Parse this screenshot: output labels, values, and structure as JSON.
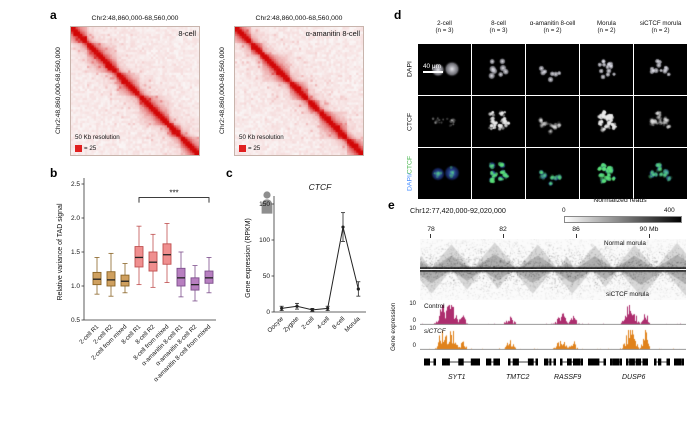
{
  "figure": {
    "panel_a": {
      "label": "a",
      "legend_color": "#e01f1f",
      "maps": [
        {
          "title": "Chr2:48,860,000-68,560,000",
          "y_label": "Chr2:48,860,000-68,560,000",
          "sample": "8-cell",
          "resolution": "50 Kb resolution",
          "scale_value": "= 25"
        },
        {
          "title": "Chr2:48,860,000-68,560,000",
          "y_label": "Chr2:48,860,000-68,560,000",
          "sample": "α-amanitin 8-cell",
          "resolution": "50 Kb resolution",
          "scale_value": "= 25"
        }
      ]
    },
    "panel_b": {
      "label": "b"
    },
    "panel_c": {
      "label": "c"
    },
    "panel_d": {
      "label": "d",
      "columns": [
        {
          "name": "2-cell",
          "n": "(n = 3)"
        },
        {
          "name": "8-cell",
          "n": "(n = 3)"
        },
        {
          "name": "α-amanitin 8-cell",
          "n": "(n = 2)"
        },
        {
          "name": "Morula",
          "n": "(n = 2)"
        },
        {
          "name": "siCTCF morula",
          "n": "(n = 2)"
        }
      ],
      "row_labels": {
        "row1": "DAPI",
        "row2": "CTCF",
        "row3_part1": "DAPI/",
        "row3_part2": "CTCF"
      },
      "stain_colors": {
        "dapi": "#4a90ff",
        "ctcf": "#44b54a"
      },
      "scale_bar": "40 μm"
    },
    "panel_e": {
      "label": "e",
      "title": "Chr12:77,420,000-92,020,000",
      "colorbar": {
        "title": "Normalized reads",
        "min": "0",
        "max": "400"
      },
      "axis_ticks": [
        "78",
        "82",
        "86",
        "90 Mb"
      ],
      "track1_label": "Normal morula",
      "track2_label": "siCTCF morula",
      "expression_axis_label": "Gene expression",
      "expr_tracks": [
        {
          "name": "Control",
          "max": "10",
          "min": "0",
          "color": "#ad2d6e"
        },
        {
          "name": "siCTCF",
          "max": "10",
          "min": "0",
          "color": "#e0821b"
        }
      ],
      "genes": [
        "SYT1",
        "TMTC2",
        "RASSF9",
        "DUSP6"
      ]
    }
  },
  "chart_data": [
    {
      "type": "box",
      "title": "Relative variance of TAD signal",
      "xlabel": "",
      "ylabel": "Relative variance of TAD signal",
      "ylim": [
        0.5,
        2.5
      ],
      "yticks": [
        0.5,
        1.0,
        1.5,
        2.0,
        2.5
      ],
      "grid": false,
      "legend_position": "none",
      "categories": [
        "2-cell R1",
        "2-cell R2",
        "2-cell from mixed",
        "8-cell R1",
        "8-cell R2",
        "8-cell from mixed",
        "α-amanitin 8-cell R1",
        "α-amanitin 8-cell R2",
        "α-amanitin 8-cell from mixed"
      ],
      "series": [
        {
          "category": "2-cell R1",
          "group": "2-cell",
          "whislo": 0.88,
          "q1": 1.02,
          "med": 1.1,
          "q3": 1.2,
          "whishi": 1.42
        },
        {
          "category": "2-cell R2",
          "group": "2-cell",
          "whislo": 0.85,
          "q1": 1.0,
          "med": 1.09,
          "q3": 1.21,
          "whishi": 1.48
        },
        {
          "category": "2-cell from mixed",
          "group": "2-cell",
          "whislo": 0.9,
          "q1": 1.0,
          "med": 1.07,
          "q3": 1.16,
          "whishi": 1.33
        },
        {
          "category": "8-cell R1",
          "group": "8-cell",
          "whislo": 1.02,
          "q1": 1.28,
          "med": 1.42,
          "q3": 1.58,
          "whishi": 1.88
        },
        {
          "category": "8-cell R2",
          "group": "8-cell",
          "whislo": 0.98,
          "q1": 1.22,
          "med": 1.35,
          "q3": 1.5,
          "whishi": 1.76
        },
        {
          "category": "8-cell from mixed",
          "group": "8-cell",
          "whislo": 1.05,
          "q1": 1.32,
          "med": 1.46,
          "q3": 1.62,
          "whishi": 1.92
        },
        {
          "category": "α-amanitin 8-cell R1",
          "group": "α-amanitin 8-cell",
          "whislo": 0.84,
          "q1": 1.0,
          "med": 1.12,
          "q3": 1.26,
          "whishi": 1.5
        },
        {
          "category": "α-amanitin 8-cell R2",
          "group": "α-amanitin 8-cell",
          "whislo": 0.78,
          "q1": 0.94,
          "med": 1.02,
          "q3": 1.12,
          "whishi": 1.3
        },
        {
          "category": "α-amanitin 8-cell from mixed",
          "group": "α-amanitin 8-cell",
          "whislo": 0.9,
          "q1": 1.04,
          "med": 1.12,
          "q3": 1.22,
          "whishi": 1.42
        }
      ],
      "group_colors": {
        "2-cell": "#cfa05f",
        "8-cell": "#ef8f8f",
        "α-amanitin 8-cell": "#b77fc0"
      },
      "group_edge": {
        "2-cell": "#8a6426",
        "8-cell": "#c05050",
        "α-amanitin 8-cell": "#7d4f8c"
      },
      "significance": {
        "label": "***",
        "from_index": 3,
        "to_index": 8,
        "y": 2.3
      }
    },
    {
      "type": "line",
      "title": "CTCF",
      "xlabel": "",
      "ylabel": "Gene expression (RPKM)",
      "ylim": [
        0,
        150
      ],
      "yticks": [
        0,
        50,
        100,
        150
      ],
      "grid": false,
      "categories": [
        "Oocyte",
        "Zygote",
        "2-cell",
        "4-cell",
        "8-cell",
        "Morula"
      ],
      "values": [
        5,
        8,
        3,
        5,
        118,
        32
      ],
      "errors": [
        3,
        4,
        2,
        3,
        20,
        10
      ],
      "line_color": "#222222"
    },
    {
      "type": "heatmap",
      "title": "Chr12:77,420,000-92,020,000",
      "x_ticks_mb": [
        78,
        82,
        86,
        90
      ],
      "colorbar": {
        "label": "Normalized reads",
        "range": [
          0,
          400
        ]
      },
      "tracks": [
        "Normal morula",
        "siCTCF morula"
      ],
      "expression_tracks": [
        {
          "name": "Control",
          "range": [
            0,
            10
          ]
        },
        {
          "name": "siCTCF",
          "range": [
            0,
            10
          ]
        }
      ],
      "genes": [
        "SYT1",
        "TMTC2",
        "RASSF9",
        "DUSP6"
      ]
    }
  ]
}
